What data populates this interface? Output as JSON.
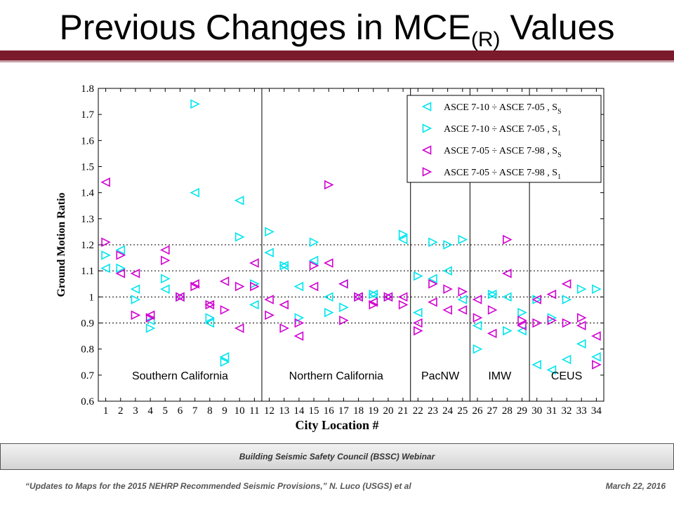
{
  "title": {
    "main": "Previous Changes in MCE",
    "sub": "(R)",
    "tail": " Values"
  },
  "banner": "Building Seismic Safety Council (BSSC) Webinar",
  "footer": {
    "left": "“Updates to Maps for the 2015 NEHRP Recommended Seismic Provisions,” N. Luco (USGS) et al",
    "right": "March 22, 2016"
  },
  "colors": {
    "cyan": "#00e5ee",
    "magenta": "#d100d1",
    "title_rule": "#7a1a2a"
  },
  "chart_data": {
    "type": "scatter",
    "xlabel": "City Location #",
    "ylabel": "Ground Motion Ratio",
    "xlim": [
      0.5,
      34.5
    ],
    "ylim": [
      0.6,
      1.8
    ],
    "x_ticks": [
      1,
      2,
      3,
      4,
      5,
      6,
      7,
      8,
      9,
      10,
      11,
      12,
      13,
      14,
      15,
      16,
      17,
      18,
      19,
      20,
      21,
      22,
      23,
      24,
      25,
      26,
      27,
      28,
      29,
      30,
      31,
      32,
      33,
      34
    ],
    "y_ticks": [
      0.6,
      0.7,
      0.8,
      0.9,
      1,
      1.1,
      1.2,
      1.3,
      1.4,
      1.5,
      1.6,
      1.7,
      1.8
    ],
    "y_tick_labels": [
      "0.6",
      "0.7",
      "0.8",
      "0.9",
      "1",
      "1.1",
      "1.2",
      "1.3",
      "1.4",
      "1.5",
      "1.6",
      "1.7",
      "1.8"
    ],
    "dotted_gridlines": [
      0.9,
      1.0,
      1.1,
      1.2
    ],
    "region_dividers": [
      11.5,
      21.5,
      25.5,
      29.5
    ],
    "regions": [
      {
        "label": "Southern California",
        "x_center": 6
      },
      {
        "label": "Northern California",
        "x_center": 16.5
      },
      {
        "label": "PacNW",
        "x_center": 23.5
      },
      {
        "label": "IMW",
        "x_center": 27.5
      },
      {
        "label": "CEUS",
        "x_center": 32
      }
    ],
    "legend_position": "top-right",
    "series": [
      {
        "label_main": "ASCE 7-10 ÷ ASCE 7-05 , S",
        "label_sub": "S",
        "marker": "triangle-left",
        "color": "#00e5ee",
        "y": [
          1.11,
          1.18,
          1.03,
          0.91,
          1.03,
          1.0,
          1.4,
          0.9,
          0.77,
          1.37,
          0.97,
          1.17,
          1.12,
          1.04,
          1.14,
          1.0,
          1.05,
          1.0,
          1.01,
          1.0,
          1.22,
          0.94,
          1.07,
          1.1,
          0.99,
          0.89,
          1.01,
          1.0,
          0.87,
          0.74,
          0.72,
          0.76,
          0.82,
          0.77
        ]
      },
      {
        "label_main": "ASCE 7-10 ÷ ASCE 7-05 , S",
        "label_sub": "1",
        "marker": "triangle-right",
        "color": "#00e5ee",
        "y": [
          1.16,
          1.11,
          0.99,
          0.88,
          1.07,
          1.0,
          1.74,
          0.92,
          0.75,
          1.23,
          1.05,
          1.25,
          1.12,
          0.92,
          1.21,
          0.94,
          0.96,
          1.0,
          1.01,
          1.0,
          1.24,
          1.08,
          1.21,
          1.2,
          1.22,
          0.8,
          1.01,
          0.87,
          0.94,
          0.99,
          0.92,
          0.99,
          1.03,
          1.03
        ]
      },
      {
        "label_main": "ASCE 7-05 ÷ ASCE 7-98 , S",
        "label_sub": "S",
        "marker": "triangle-left",
        "color": "#d100d1",
        "y": [
          1.44,
          1.09,
          1.09,
          0.93,
          1.18,
          1.0,
          1.05,
          0.97,
          1.06,
          0.88,
          1.13,
          0.99,
          0.97,
          0.85,
          1.04,
          1.13,
          1.05,
          1.0,
          0.98,
          1.0,
          1.0,
          0.9,
          0.98,
          0.95,
          0.95,
          0.99,
          0.86,
          1.09,
          0.89,
          0.99,
          1.01,
          1.05,
          0.89,
          0.85
        ]
      },
      {
        "label_main": "ASCE 7-05 ÷ ASCE 7-98 , S",
        "label_sub": "1",
        "marker": "triangle-right",
        "color": "#d100d1",
        "y": [
          1.21,
          1.16,
          0.93,
          0.92,
          1.14,
          1.0,
          1.04,
          0.97,
          0.95,
          1.04,
          1.04,
          0.93,
          0.88,
          0.9,
          1.12,
          1.43,
          0.91,
          1.0,
          0.97,
          1.0,
          0.97,
          0.87,
          1.05,
          1.03,
          1.02,
          0.92,
          0.95,
          1.22,
          0.91,
          0.9,
          0.91,
          0.9,
          0.92,
          0.74
        ]
      }
    ]
  }
}
